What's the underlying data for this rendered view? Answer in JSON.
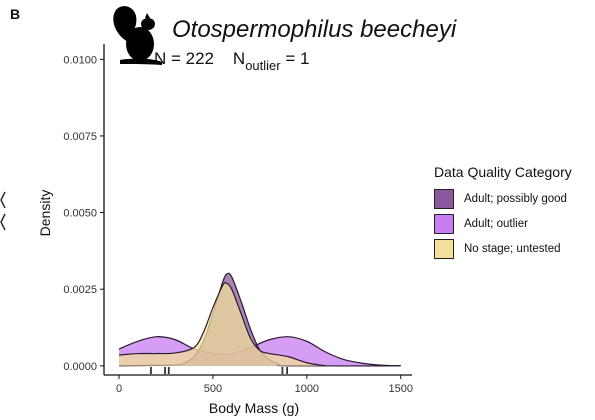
{
  "figure": {
    "panel_label": "B",
    "title": "Otospermophilus beecheyi",
    "subtitle_n": "N = 222",
    "subtitle_outlier_prefix": "N",
    "subtitle_outlier_sub": "outlier",
    "subtitle_outlier_suffix": " = 1",
    "icon": "squirrel-silhouette-icon"
  },
  "chart_data": {
    "type": "area",
    "title": "Otospermophilus beecheyi",
    "xlabel": "Body Mass (g)",
    "ylabel": "Density",
    "xlim": [
      -80,
      1560
    ],
    "ylim": [
      -0.0003,
      0.0105
    ],
    "x_ticks": [
      0,
      500,
      1000,
      1500
    ],
    "y_ticks": [
      0.0,
      0.0025,
      0.005,
      0.0075,
      0.01
    ],
    "y_tick_labels": [
      "0.0000",
      "0.0025",
      "0.0050",
      "0.0075",
      "0.0100"
    ],
    "grid": false,
    "legend_title": "Data Quality Category",
    "legend_position": "right",
    "series": [
      {
        "name": "Adult; outlier",
        "color": "#c77cf0",
        "opacity": 0.75,
        "points": [
          [
            0,
            0.00055
          ],
          [
            100,
            0.0008
          ],
          [
            200,
            0.00095
          ],
          [
            300,
            0.00085
          ],
          [
            400,
            0.00055
          ],
          [
            500,
            0.0004
          ],
          [
            550,
            0.00038
          ],
          [
            600,
            0.0004
          ],
          [
            700,
            0.0006
          ],
          [
            800,
            0.00085
          ],
          [
            900,
            0.00095
          ],
          [
            1000,
            0.0008
          ],
          [
            1100,
            0.00045
          ],
          [
            1200,
            0.0002
          ],
          [
            1300,
            8e-05
          ],
          [
            1400,
            2e-05
          ],
          [
            1500,
            0.0
          ]
        ]
      },
      {
        "name": "Adult; possibly good",
        "color": "#8b5a9e",
        "opacity": 0.75,
        "points": [
          [
            0,
            0.0
          ],
          [
            300,
            3e-05
          ],
          [
            350,
            0.0001
          ],
          [
            400,
            0.0003
          ],
          [
            450,
            0.0008
          ],
          [
            500,
            0.0017
          ],
          [
            550,
            0.0027
          ],
          [
            575,
            0.003
          ],
          [
            600,
            0.0029
          ],
          [
            650,
            0.0021
          ],
          [
            700,
            0.0012
          ],
          [
            750,
            0.0005
          ],
          [
            800,
            0.0002
          ],
          [
            850,
            6e-05
          ],
          [
            900,
            0.0
          ],
          [
            1500,
            0.0
          ]
        ]
      },
      {
        "name": "No stage; untested",
        "color": "#f2df9a",
        "opacity": 0.75,
        "points": [
          [
            0,
            0.00035
          ],
          [
            100,
            0.0004
          ],
          [
            200,
            0.0004
          ],
          [
            300,
            0.00042
          ],
          [
            400,
            0.0006
          ],
          [
            450,
            0.0011
          ],
          [
            500,
            0.0019
          ],
          [
            550,
            0.0026
          ],
          [
            570,
            0.0027
          ],
          [
            600,
            0.0025
          ],
          [
            650,
            0.0017
          ],
          [
            700,
            0.0009
          ],
          [
            750,
            0.0005
          ],
          [
            800,
            0.0004
          ],
          [
            900,
            0.0003
          ],
          [
            1000,
            0.0001
          ],
          [
            1100,
            0.0
          ]
        ]
      }
    ],
    "rug": [
      170,
      245,
      265,
      870,
      895
    ]
  }
}
